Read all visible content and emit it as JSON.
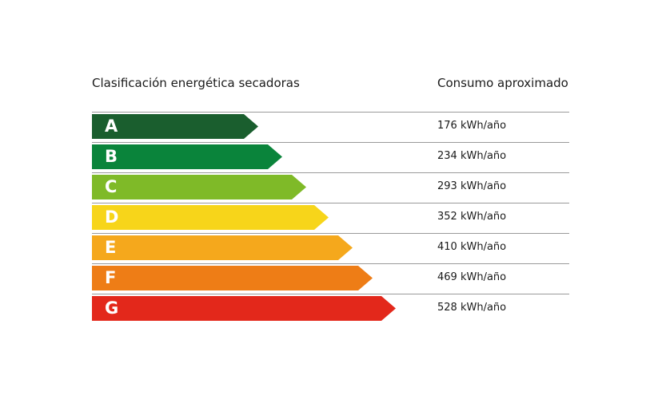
{
  "header": {
    "left_title": "Clasificación energética secadoras",
    "right_title": "Consumo aproximado"
  },
  "classes": [
    {
      "letter": "A",
      "consumption": "176 kWh/año",
      "color": "#1a5e2e"
    },
    {
      "letter": "B",
      "consumption": "234 kWh/año",
      "color": "#0a843b"
    },
    {
      "letter": "C",
      "consumption": "293 kWh/año",
      "color": "#7fba28"
    },
    {
      "letter": "D",
      "consumption": "352 kWh/año",
      "color": "#f7d51a"
    },
    {
      "letter": "E",
      "consumption": "410 kWh/año",
      "color": "#f5a81c"
    },
    {
      "letter": "F",
      "consumption": "469 kWh/año",
      "color": "#ee7d16"
    },
    {
      "letter": "G",
      "consumption": "528 kWh/año",
      "color": "#e3281b"
    }
  ]
}
